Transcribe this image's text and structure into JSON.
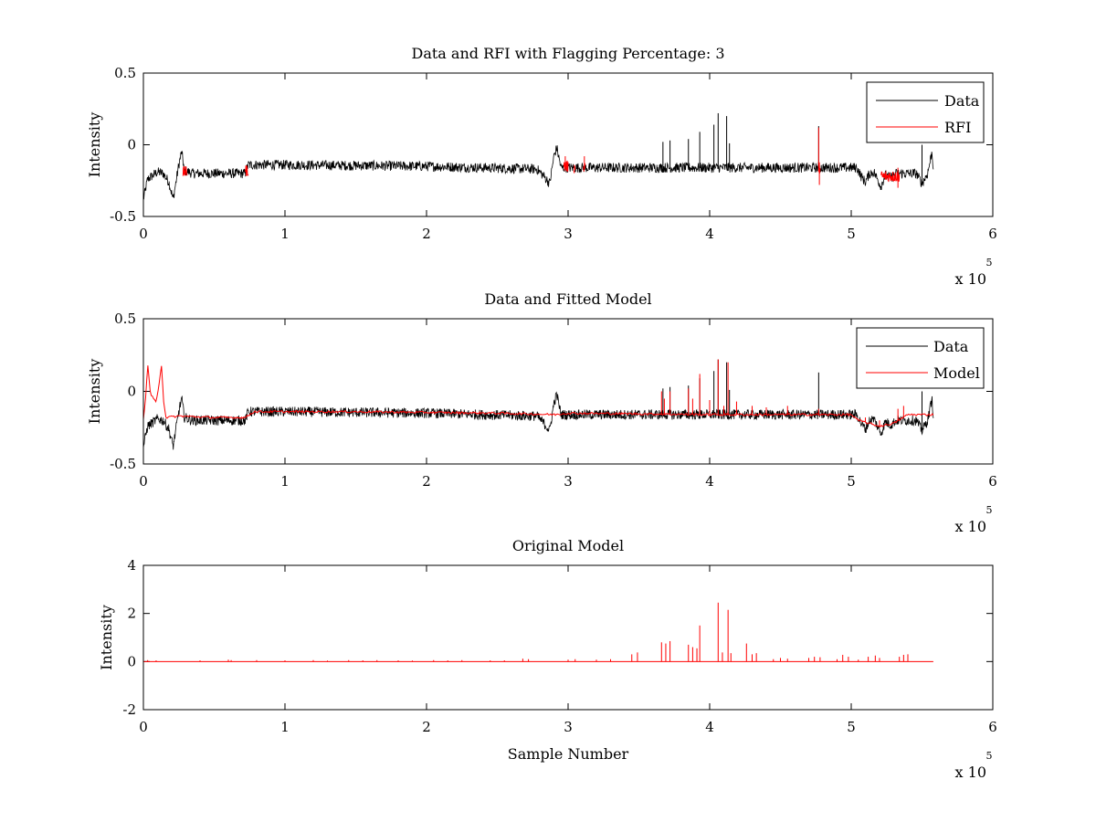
{
  "figure": {
    "background": "#ffffff",
    "data_color": "#000000",
    "model_color": "#ff0000"
  },
  "chart_data": [
    {
      "type": "line",
      "title": "Data and RFI with Flagging Percentage: 3",
      "xlabel": "",
      "ylabel": "Intensity",
      "xlim": [
        0,
        600000
      ],
      "ylim": [
        -0.5,
        0.5
      ],
      "xticks": [
        0,
        100000,
        200000,
        300000,
        400000,
        500000,
        600000
      ],
      "xtick_labels": [
        "0",
        "1",
        "2",
        "3",
        "4",
        "5",
        "6"
      ],
      "yticks": [
        -0.5,
        0,
        0.5
      ],
      "ytick_labels": [
        "-0.5",
        "0",
        "0.5"
      ],
      "x_multiplier": "x 10",
      "x_exponent": "5",
      "legend_position": "top-right",
      "series": [
        {
          "name": "Data",
          "color": "#000000",
          "kind": "noisy",
          "x_end": 558000,
          "noise": 0.035,
          "baseline": [
            [
              0,
              -0.38
            ],
            [
              3000,
              -0.24
            ],
            [
              10000,
              -0.19
            ],
            [
              14000,
              -0.2
            ],
            [
              18000,
              -0.26
            ],
            [
              21000,
              -0.38
            ],
            [
              25000,
              -0.14
            ],
            [
              27000,
              -0.05
            ],
            [
              29000,
              -0.18
            ],
            [
              35000,
              -0.2
            ],
            [
              72000,
              -0.2
            ],
            [
              74000,
              -0.14
            ],
            [
              100000,
              -0.14
            ],
            [
              200000,
              -0.15
            ],
            [
              278000,
              -0.17
            ],
            [
              283000,
              -0.22
            ],
            [
              287000,
              -0.27
            ],
            [
              290000,
              -0.08
            ],
            [
              292000,
              -0.02
            ],
            [
              295000,
              -0.16
            ],
            [
              400000,
              -0.16
            ],
            [
              480000,
              -0.16
            ],
            [
              504000,
              -0.16
            ],
            [
              507000,
              -0.22
            ],
            [
              510000,
              -0.26
            ],
            [
              513000,
              -0.2
            ],
            [
              516000,
              -0.19
            ],
            [
              519000,
              -0.25
            ],
            [
              521000,
              -0.29
            ],
            [
              524000,
              -0.21
            ],
            [
              528000,
              -0.23
            ],
            [
              532000,
              -0.2
            ],
            [
              537000,
              -0.2
            ],
            [
              546000,
              -0.2
            ],
            [
              550000,
              -0.27
            ],
            [
              554000,
              -0.2
            ],
            [
              557000,
              -0.05
            ],
            [
              558000,
              -0.16
            ]
          ],
          "spikes": [
            [
              367000,
              0.02
            ],
            [
              372000,
              0.03
            ],
            [
              385000,
              0.04
            ],
            [
              393000,
              0.09
            ],
            [
              403000,
              0.14
            ],
            [
              406000,
              0.22
            ],
            [
              412000,
              0.2
            ],
            [
              414000,
              0.01
            ],
            [
              477000,
              0.13
            ],
            [
              550000,
              0.0
            ]
          ]
        },
        {
          "name": "RFI",
          "color": "#ff0000",
          "kind": "segments",
          "segments": [
            [
              28000,
              31000,
              -0.19
            ],
            [
              72000,
              74000,
              -0.18
            ],
            [
              297000,
              300000,
              -0.15
            ],
            [
              304000,
              305000,
              -0.16
            ],
            [
              311000,
              312000,
              -0.16
            ],
            [
              477000,
              478000,
              -0.16
            ],
            [
              521000,
              534000,
              -0.22
            ]
          ],
          "spikes": [
            [
              477000,
              0.12
            ],
            [
              477500,
              -0.28
            ],
            [
              298000,
              -0.08
            ],
            [
              311500,
              -0.08
            ],
            [
              533000,
              -0.3
            ]
          ]
        }
      ]
    },
    {
      "type": "line",
      "title": "Data and Fitted Model",
      "xlabel": "",
      "ylabel": "Intensity",
      "xlim": [
        0,
        600000
      ],
      "ylim": [
        -0.5,
        0.5
      ],
      "xticks": [
        0,
        100000,
        200000,
        300000,
        400000,
        500000,
        600000
      ],
      "xtick_labels": [
        "0",
        "1",
        "2",
        "3",
        "4",
        "5",
        "6"
      ],
      "yticks": [
        -0.5,
        0,
        0.5
      ],
      "ytick_labels": [
        "-0.5",
        "0",
        "0.5"
      ],
      "x_multiplier": "x 10",
      "x_exponent": "5",
      "legend_position": "top-right",
      "series": [
        {
          "name": "Data",
          "color": "#000000",
          "kind": "noisy",
          "x_end": 558000,
          "noise": 0.035,
          "baseline": [
            [
              0,
              -0.38
            ],
            [
              3000,
              -0.24
            ],
            [
              10000,
              -0.19
            ],
            [
              14000,
              -0.2
            ],
            [
              18000,
              -0.26
            ],
            [
              21000,
              -0.38
            ],
            [
              25000,
              -0.14
            ],
            [
              27000,
              -0.05
            ],
            [
              29000,
              -0.18
            ],
            [
              35000,
              -0.2
            ],
            [
              72000,
              -0.2
            ],
            [
              74000,
              -0.14
            ],
            [
              100000,
              -0.14
            ],
            [
              200000,
              -0.15
            ],
            [
              278000,
              -0.17
            ],
            [
              283000,
              -0.22
            ],
            [
              287000,
              -0.27
            ],
            [
              290000,
              -0.08
            ],
            [
              292000,
              -0.02
            ],
            [
              295000,
              -0.16
            ],
            [
              400000,
              -0.16
            ],
            [
              480000,
              -0.16
            ],
            [
              504000,
              -0.16
            ],
            [
              507000,
              -0.22
            ],
            [
              510000,
              -0.26
            ],
            [
              513000,
              -0.2
            ],
            [
              516000,
              -0.19
            ],
            [
              519000,
              -0.25
            ],
            [
              521000,
              -0.29
            ],
            [
              524000,
              -0.21
            ],
            [
              528000,
              -0.23
            ],
            [
              532000,
              -0.2
            ],
            [
              537000,
              -0.2
            ],
            [
              546000,
              -0.2
            ],
            [
              550000,
              -0.27
            ],
            [
              554000,
              -0.2
            ],
            [
              557000,
              -0.05
            ],
            [
              558000,
              -0.16
            ]
          ],
          "spikes": [
            [
              367000,
              0.02
            ],
            [
              372000,
              0.03
            ],
            [
              385000,
              0.04
            ],
            [
              393000,
              0.09
            ],
            [
              403000,
              0.14
            ],
            [
              406000,
              0.22
            ],
            [
              412000,
              0.2
            ],
            [
              414000,
              0.01
            ],
            [
              477000,
              0.13
            ],
            [
              550000,
              0.0
            ]
          ]
        },
        {
          "name": "Model",
          "color": "#ff0000",
          "kind": "smooth",
          "points": [
            [
              0,
              -0.2
            ],
            [
              2000,
              0.0
            ],
            [
              3000,
              0.2
            ],
            [
              5000,
              -0.02
            ],
            [
              7000,
              -0.05
            ],
            [
              9000,
              -0.08
            ],
            [
              11000,
              0.05
            ],
            [
              13000,
              0.2
            ],
            [
              14000,
              -0.05
            ],
            [
              16000,
              -0.18
            ],
            [
              25000,
              -0.17
            ],
            [
              50000,
              -0.18
            ],
            [
              72000,
              -0.18
            ],
            [
              78000,
              -0.14
            ],
            [
              150000,
              -0.14
            ],
            [
              250000,
              -0.15
            ],
            [
              290000,
              -0.16
            ],
            [
              300000,
              -0.15
            ],
            [
              400000,
              -0.16
            ],
            [
              500000,
              -0.16
            ],
            [
              505000,
              -0.2
            ],
            [
              520000,
              -0.24
            ],
            [
              530000,
              -0.22
            ],
            [
              540000,
              -0.16
            ],
            [
              558000,
              -0.16
            ]
          ],
          "spikes": [
            [
              366000,
              0.0
            ],
            [
              368000,
              -0.05
            ],
            [
              372000,
              0.0
            ],
            [
              385000,
              0.02
            ],
            [
              388000,
              -0.05
            ],
            [
              393000,
              0.12
            ],
            [
              400000,
              -0.06
            ],
            [
              406000,
              0.22
            ],
            [
              410000,
              -0.1
            ],
            [
              413000,
              0.2
            ],
            [
              419000,
              -0.07
            ],
            [
              430000,
              -0.1
            ],
            [
              440000,
              -0.11
            ],
            [
              455000,
              -0.1
            ],
            [
              477000,
              -0.12
            ],
            [
              510000,
              -0.18
            ],
            [
              520000,
              -0.2
            ],
            [
              533000,
              -0.12
            ],
            [
              537000,
              -0.1
            ]
          ]
        }
      ]
    },
    {
      "type": "line",
      "title": "Original Model",
      "xlabel": "Sample Number",
      "ylabel": "Intensity",
      "xlim": [
        0,
        600000
      ],
      "ylim": [
        -2,
        4
      ],
      "xticks": [
        0,
        100000,
        200000,
        300000,
        400000,
        500000,
        600000
      ],
      "xtick_labels": [
        "0",
        "1",
        "2",
        "3",
        "4",
        "5",
        "6"
      ],
      "yticks": [
        -2,
        0,
        2,
        4
      ],
      "ytick_labels": [
        "-2",
        "0",
        "2",
        "4"
      ],
      "x_multiplier": "x 10",
      "x_exponent": "5",
      "series": [
        {
          "name": "Original Model",
          "color": "#ff0000",
          "kind": "impulses",
          "x_end": 558000,
          "baseline_value": 0,
          "impulses": [
            [
              3000,
              0.06
            ],
            [
              9000,
              0.05
            ],
            [
              40000,
              0.05
            ],
            [
              60000,
              0.08
            ],
            [
              62000,
              0.06
            ],
            [
              80000,
              0.06
            ],
            [
              100000,
              0.05
            ],
            [
              120000,
              0.06
            ],
            [
              130000,
              0.04
            ],
            [
              145000,
              0.06
            ],
            [
              155000,
              0.05
            ],
            [
              165000,
              0.06
            ],
            [
              180000,
              0.05
            ],
            [
              190000,
              0.04
            ],
            [
              205000,
              0.06
            ],
            [
              215000,
              0.05
            ],
            [
              225000,
              0.06
            ],
            [
              245000,
              0.05
            ],
            [
              255000,
              0.05
            ],
            [
              268000,
              0.12
            ],
            [
              272000,
              0.1
            ],
            [
              300000,
              0.08
            ],
            [
              305000,
              0.1
            ],
            [
              320000,
              0.08
            ],
            [
              330000,
              0.1
            ],
            [
              345000,
              0.3
            ],
            [
              349000,
              0.38
            ],
            [
              366000,
              0.8
            ],
            [
              369000,
              0.75
            ],
            [
              372000,
              0.85
            ],
            [
              385000,
              0.7
            ],
            [
              388000,
              0.6
            ],
            [
              391000,
              0.55
            ],
            [
              393000,
              1.5
            ],
            [
              406000,
              2.45
            ],
            [
              409000,
              0.38
            ],
            [
              413000,
              2.15
            ],
            [
              415000,
              0.35
            ],
            [
              426000,
              0.75
            ],
            [
              430000,
              0.3
            ],
            [
              433000,
              0.35
            ],
            [
              445000,
              0.1
            ],
            [
              450000,
              0.15
            ],
            [
              455000,
              0.12
            ],
            [
              470000,
              0.15
            ],
            [
              474000,
              0.2
            ],
            [
              478000,
              0.18
            ],
            [
              490000,
              0.1
            ],
            [
              494000,
              0.28
            ],
            [
              498000,
              0.2
            ],
            [
              505000,
              0.08
            ],
            [
              512000,
              0.2
            ],
            [
              517000,
              0.25
            ],
            [
              520000,
              0.15
            ],
            [
              534000,
              0.2
            ],
            [
              537000,
              0.28
            ],
            [
              540000,
              0.3
            ]
          ]
        }
      ]
    }
  ]
}
